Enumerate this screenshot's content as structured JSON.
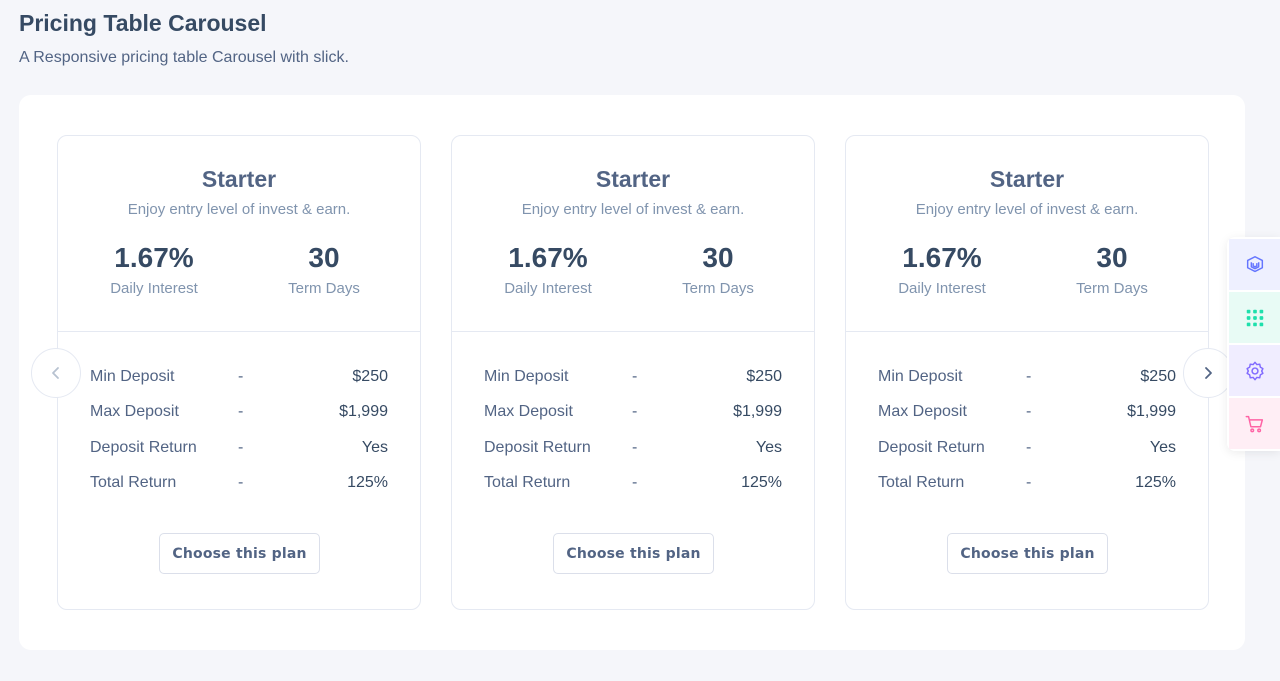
{
  "header": {
    "title": "Pricing Table Carousel",
    "subtitle": "A Responsive pricing table Carousel with slick."
  },
  "plans": [
    {
      "title": "Starter",
      "description": "Enjoy entry level of invest & earn.",
      "stat1": {
        "value": "1.67%",
        "label": "Daily Interest"
      },
      "stat2": {
        "value": "30",
        "label": "Term Days"
      },
      "rows": [
        {
          "label": "Min Deposit",
          "sep": "-",
          "value": "$250"
        },
        {
          "label": "Max Deposit",
          "sep": "-",
          "value": "$1,999"
        },
        {
          "label": "Deposit Return",
          "sep": "-",
          "value": "Yes"
        },
        {
          "label": "Total Return",
          "sep": "-",
          "value": "125%"
        }
      ],
      "button_label": "Choose this plan"
    },
    {
      "title": "Starter",
      "description": "Enjoy entry level of invest & earn.",
      "stat1": {
        "value": "1.67%",
        "label": "Daily Interest"
      },
      "stat2": {
        "value": "30",
        "label": "Term Days"
      },
      "rows": [
        {
          "label": "Min Deposit",
          "sep": "-",
          "value": "$250"
        },
        {
          "label": "Max Deposit",
          "sep": "-",
          "value": "$1,999"
        },
        {
          "label": "Deposit Return",
          "sep": "-",
          "value": "Yes"
        },
        {
          "label": "Total Return",
          "sep": "-",
          "value": "125%"
        }
      ],
      "button_label": "Choose this plan"
    },
    {
      "title": "Starter",
      "description": "Enjoy entry level of invest & earn.",
      "stat1": {
        "value": "1.67%",
        "label": "Daily Interest"
      },
      "stat2": {
        "value": "30",
        "label": "Term Days"
      },
      "rows": [
        {
          "label": "Min Deposit",
          "sep": "-",
          "value": "$250"
        },
        {
          "label": "Max Deposit",
          "sep": "-",
          "value": "$1,999"
        },
        {
          "label": "Deposit Return",
          "sep": "-",
          "value": "Yes"
        },
        {
          "label": "Total Return",
          "sep": "-",
          "value": "125%"
        }
      ],
      "button_label": "Choose this plan"
    }
  ],
  "carousel": {
    "prev_icon": "chevron-left-icon",
    "next_icon": "chevron-right-icon"
  },
  "dock": [
    {
      "icon": "layers-icon",
      "color": "#6576ff",
      "bg": "#eef0ff"
    },
    {
      "icon": "grid-dots-icon",
      "color": "#1ee0ac",
      "bg": "#e8fbf5"
    },
    {
      "icon": "gear-icon",
      "color": "#816bff",
      "bg": "#f0edff"
    },
    {
      "icon": "cart-icon",
      "color": "#ff63a5",
      "bg": "#ffeef5"
    }
  ]
}
